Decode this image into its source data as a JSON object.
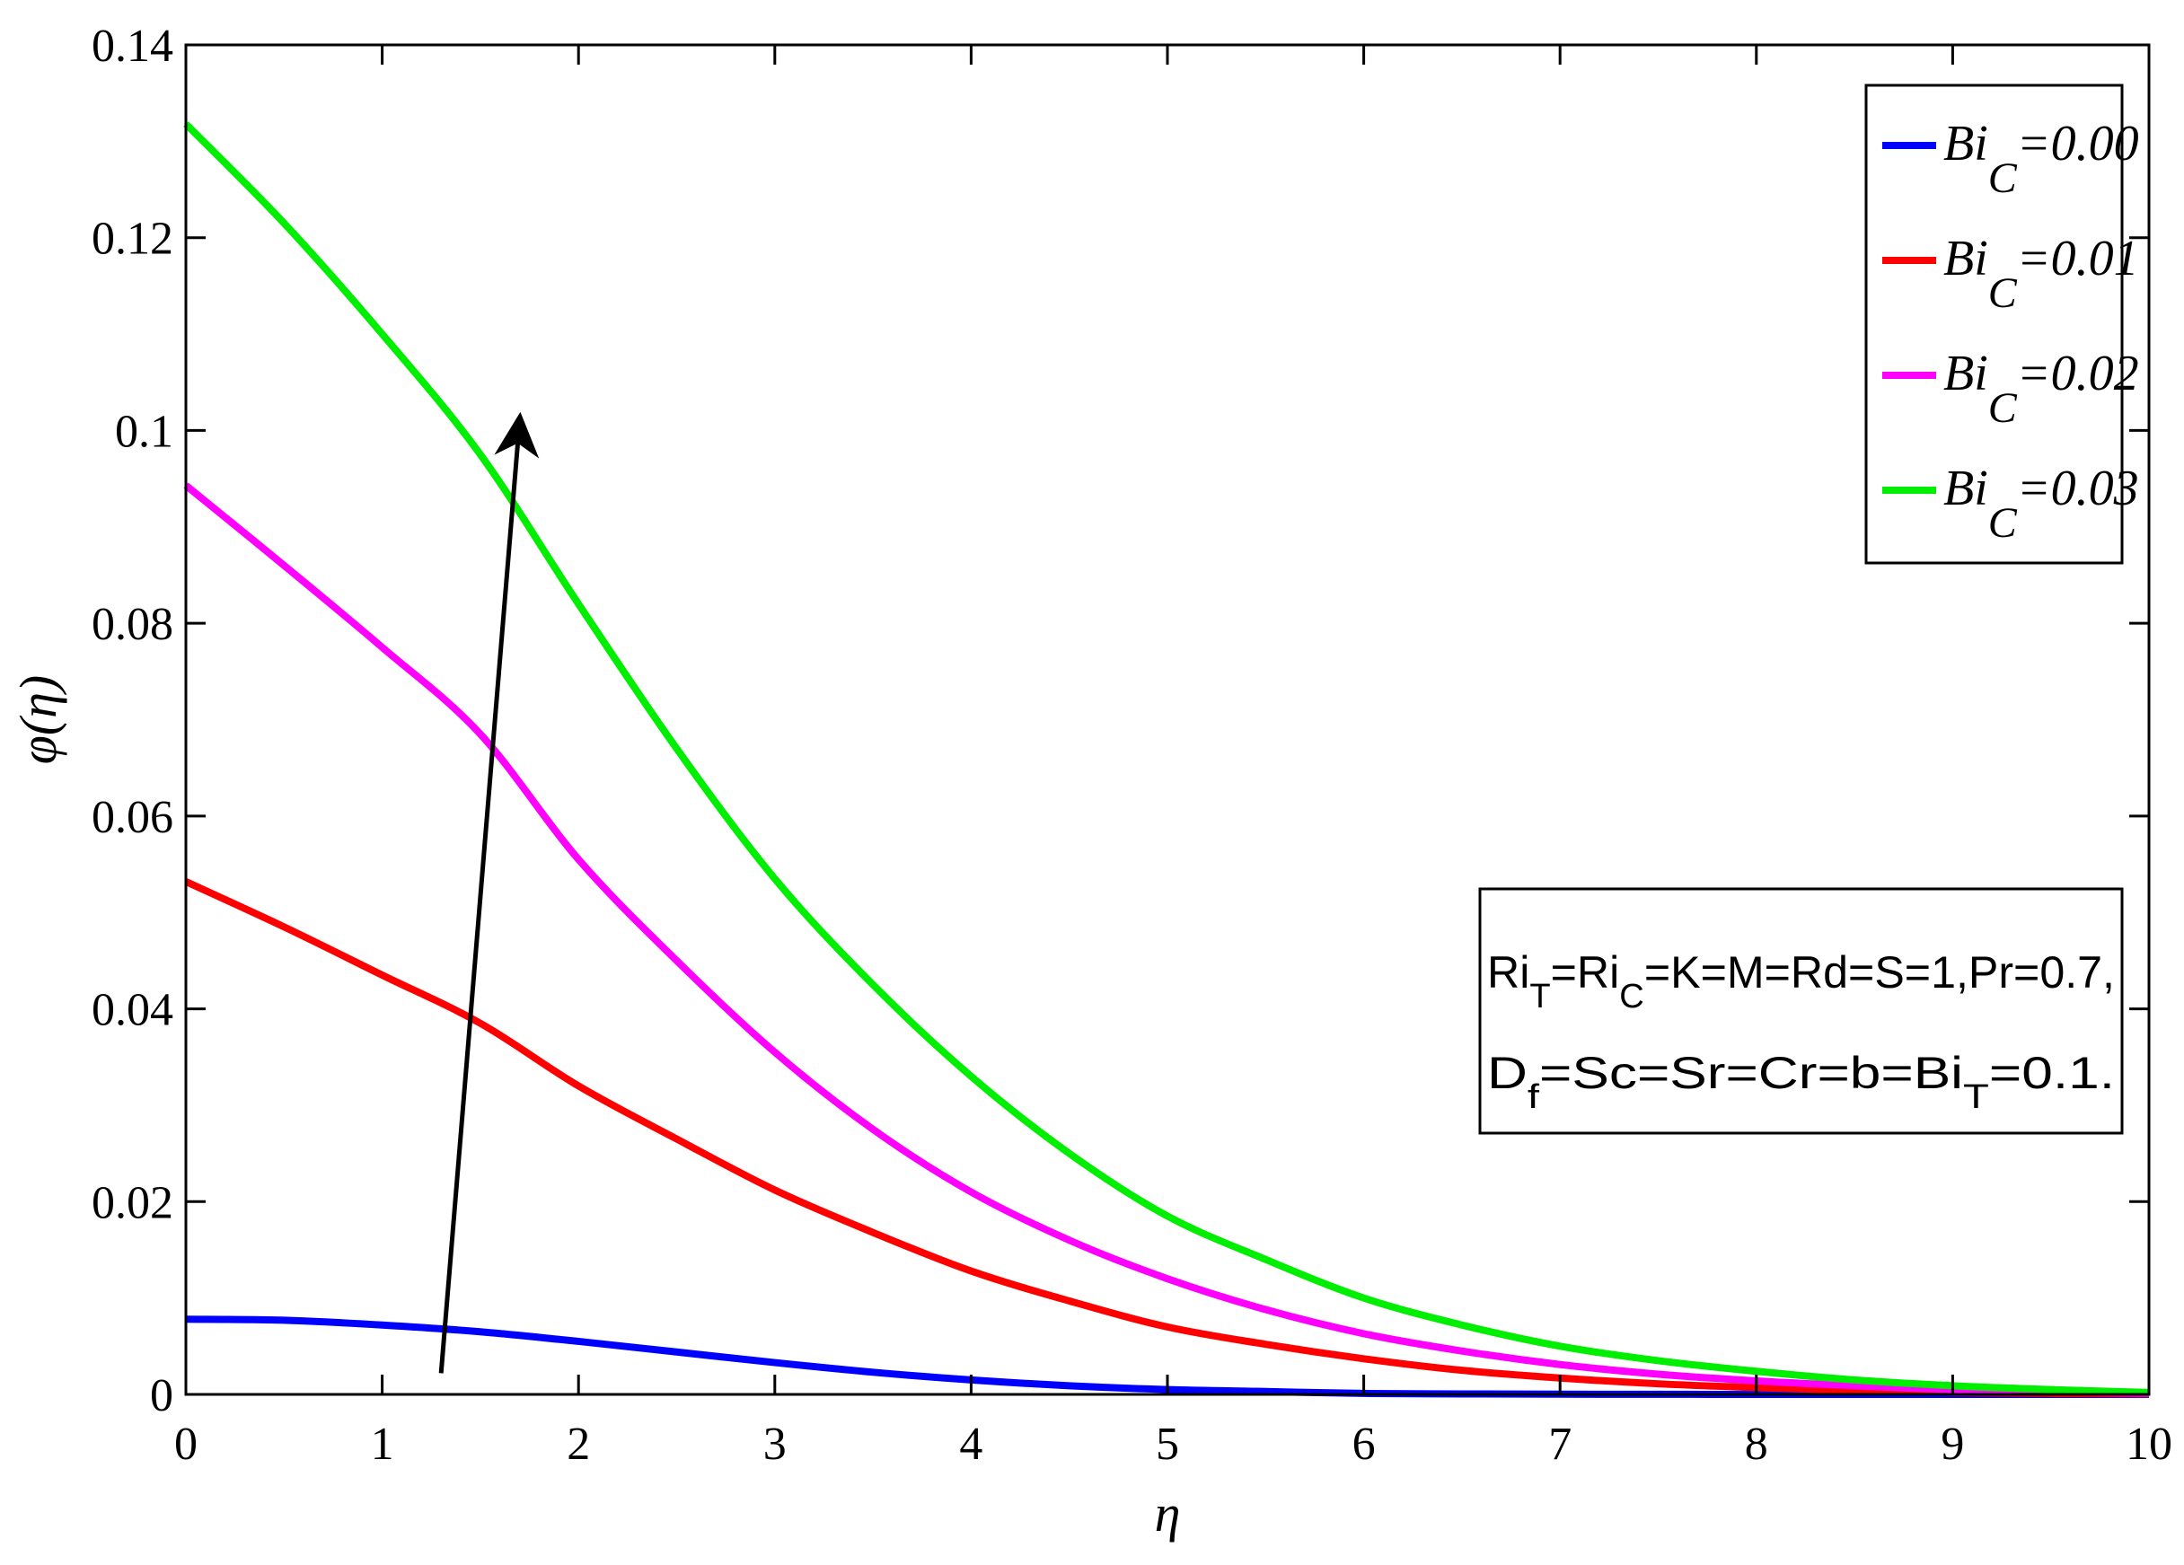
{
  "chart_data": {
    "type": "line",
    "xlabel": "η",
    "ylabel": "φ(η)",
    "xlim": [
      0,
      10
    ],
    "ylim": [
      0,
      0.14
    ],
    "x_ticks": [
      "0",
      "1",
      "2",
      "3",
      "4",
      "5",
      "6",
      "7",
      "8",
      "9",
      "10"
    ],
    "y_ticks": [
      "0",
      "0.02",
      "0.04",
      "0.06",
      "0.08",
      "0.1",
      "0.12",
      "0.14"
    ],
    "grid": false,
    "legend_position": "top-right",
    "x": [
      0,
      0.5,
      1,
      1.5,
      2,
      2.5,
      3,
      3.5,
      4,
      4.5,
      5,
      5.5,
      6,
      6.5,
      7,
      7.5,
      8,
      8.5,
      9,
      9.5,
      10
    ],
    "series": [
      {
        "name": "0.00",
        "legend_base": "Bi",
        "legend_sub": "C",
        "legend_value": "=0.00",
        "color": "#0000ff",
        "values": [
          0.0078,
          0.0077,
          0.0072,
          0.0065,
          0.0055,
          0.0044,
          0.0033,
          0.0023,
          0.0015,
          0.0009,
          0.0005,
          0.0003,
          0.0001,
          5e-05,
          2e-05,
          1e-05,
          0,
          0,
          0,
          0,
          0
        ]
      },
      {
        "name": "0.01",
        "legend_base": "Bi",
        "legend_sub": "C",
        "legend_value": "=0.01",
        "color": "#ff0000",
        "values": [
          0.0532,
          0.0485,
          0.0435,
          0.0385,
          0.032,
          0.0265,
          0.0212,
          0.0168,
          0.0128,
          0.0097,
          0.007,
          0.0052,
          0.0037,
          0.0025,
          0.0017,
          0.0011,
          0.0007,
          0.0004,
          0.0002,
          0.0001,
          5e-05
        ]
      },
      {
        "name": "0.02",
        "legend_base": "Bi",
        "legend_sub": "C",
        "legend_value": "=0.02",
        "color": "#ff00ff",
        "values": [
          0.0943,
          0.086,
          0.0775,
          0.0685,
          0.0555,
          0.045,
          0.0355,
          0.0275,
          0.021,
          0.016,
          0.012,
          0.0088,
          0.0063,
          0.0045,
          0.0031,
          0.0021,
          0.0014,
          0.0009,
          0.0005,
          0.0003,
          0.0001
        ]
      },
      {
        "name": "0.03",
        "legend_base": "Bi",
        "legend_sub": "C",
        "legend_value": "=0.03",
        "color": "#00ee00",
        "values": [
          0.1318,
          0.1215,
          0.11,
          0.0975,
          0.082,
          0.067,
          0.0535,
          0.0425,
          0.033,
          0.025,
          0.0185,
          0.014,
          0.01,
          0.0072,
          0.005,
          0.0035,
          0.0024,
          0.0015,
          0.0009,
          0.0005,
          0.0002
        ]
      }
    ],
    "arrow": {
      "from": [
        1.3,
        0.0022
      ],
      "to": [
        1.7,
        0.101
      ],
      "color": "#000000"
    },
    "parameter_box": {
      "line1": [
        {
          "t": "Ri"
        },
        {
          "sub": "T"
        },
        {
          "t": "=Ri"
        },
        {
          "sub": "C"
        },
        {
          "t": "=K=M=Rd=S=1,Pr=0.7,"
        }
      ],
      "line2": [
        {
          "t": "D"
        },
        {
          "sub": "f"
        },
        {
          "t": "=Sc=Sr=Cr=b=Bi"
        },
        {
          "sub": "T"
        },
        {
          "t": "=0.1."
        }
      ]
    }
  }
}
